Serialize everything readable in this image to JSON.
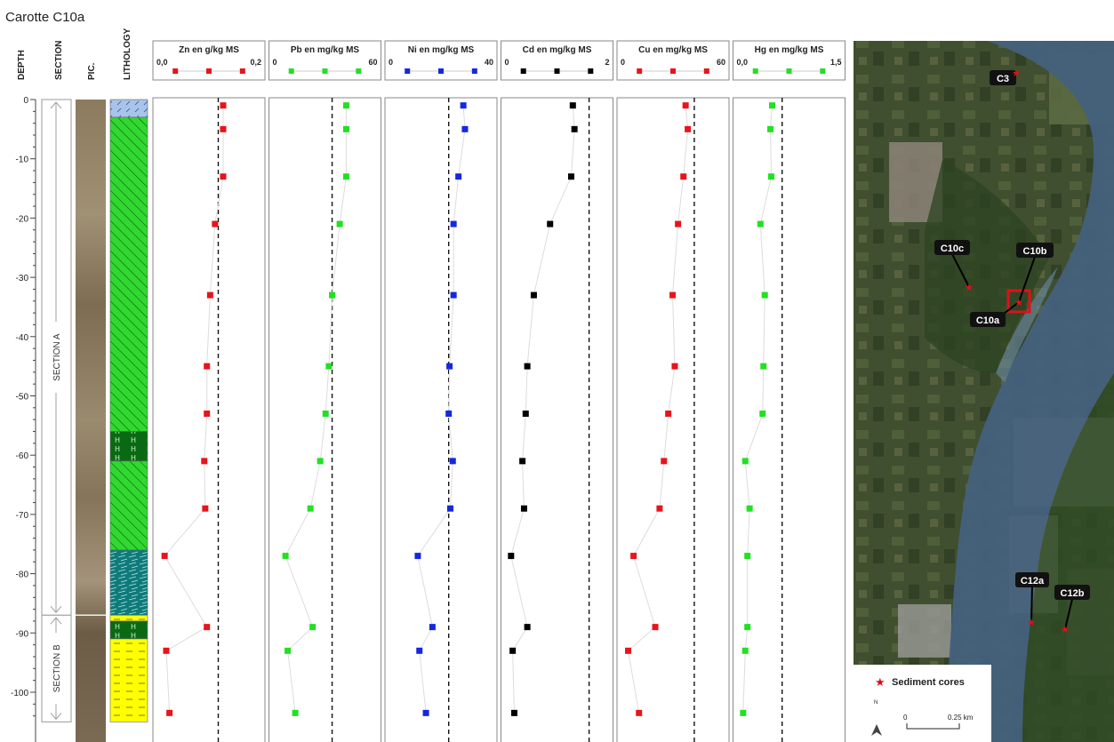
{
  "page": {
    "title": "Carotte C10a",
    "depth_label": "DEPTH",
    "section_label": "SECTION",
    "pic_label": "PIC.",
    "lithology_label": "LITHOLOGY"
  },
  "colors": {
    "zn": "#e8141c",
    "pb": "#22e022",
    "ni": "#1428e0",
    "cd": "#000000",
    "cu": "#e8141c",
    "hg": "#22e022",
    "lith_blue": "#a9c4ea",
    "lith_green": "#30d830",
    "lith_darkgreen": "#0a6a14",
    "lith_teal": "#0f7a7a",
    "lith_yellow": "#ffff00"
  },
  "sections": [
    {
      "label": "SECTION A",
      "top": 0,
      "bottom": -87
    },
    {
      "label": "SECTION B",
      "top": -87,
      "bottom": -105
    }
  ],
  "lithology": [
    {
      "top": 0,
      "bottom": -3,
      "type": "blue"
    },
    {
      "top": -3,
      "bottom": -56,
      "type": "green"
    },
    {
      "top": -56,
      "bottom": -61,
      "type": "darkgreen"
    },
    {
      "top": -61,
      "bottom": -76,
      "type": "green"
    },
    {
      "top": -76,
      "bottom": -87,
      "type": "teal"
    },
    {
      "top": -87,
      "bottom": -88,
      "type": "yellow"
    },
    {
      "top": -88,
      "bottom": -91,
      "type": "darkgreen"
    },
    {
      "top": -91,
      "bottom": -105,
      "type": "yellow"
    }
  ],
  "map": {
    "legend_label": "Sediment cores",
    "scale_label_left": "0",
    "scale_label_right": "0.25 km",
    "north_label": "N",
    "labels": [
      {
        "text": "C3"
      },
      {
        "text": "C10c"
      },
      {
        "text": "C10b"
      },
      {
        "text": "C10a"
      },
      {
        "text": "C12a"
      },
      {
        "text": "C12b"
      }
    ]
  },
  "chart_data": {
    "type": "scatter",
    "ylim": [
      0,
      -105
    ],
    "yticks": [
      0,
      -10,
      -20,
      -30,
      -40,
      -50,
      -60,
      -70,
      -80,
      -90,
      -100
    ],
    "depths": [
      -1,
      -5,
      -13,
      -21,
      -33,
      -45,
      -53,
      -61,
      -69,
      -77,
      -89,
      -93,
      -103.5
    ],
    "panels": [
      {
        "key": "zn",
        "label": "Zn en g/kg MS",
        "min_label": "0,0",
        "max_label": "0,2",
        "xlim": [
          0,
          0.2
        ],
        "threshold": 0.19,
        "values": [
          0.205,
          0.205,
          0.205,
          0.18,
          0.165,
          0.155,
          0.155,
          0.147,
          0.15,
          0.025,
          0.155,
          0.03,
          0.04
        ]
      },
      {
        "key": "pb",
        "label": "Pb en mg/kg MS",
        "min_label": "0",
        "max_label": "60",
        "xlim": [
          0,
          60
        ],
        "threshold": 55,
        "values": [
          68,
          68,
          68,
          62,
          55,
          52,
          49,
          44,
          35,
          12,
          37,
          14,
          21
        ]
      },
      {
        "key": "ni",
        "label": "Ni en mg/kg MS",
        "min_label": "0",
        "max_label": "40",
        "xlim": [
          0,
          40
        ],
        "threshold": 37,
        "values": [
          46,
          47,
          43,
          40,
          40,
          37.5,
          37,
          39.5,
          38,
          18,
          27,
          19,
          23
        ]
      },
      {
        "key": "cd",
        "label": "Cd en mg/kg MS",
        "min_label": "0",
        "max_label": "2",
        "xlim": [
          0,
          2
        ],
        "threshold": 2.6,
        "values": [
          2.1,
          2.15,
          2.05,
          1.4,
          0.9,
          0.7,
          0.65,
          0.55,
          0.6,
          0.2,
          0.7,
          0.25,
          0.3
        ]
      },
      {
        "key": "cu",
        "label": "Cu en mg/kg MS",
        "min_label": "0",
        "max_label": "60",
        "xlim": [
          0,
          60
        ],
        "threshold": 68,
        "values": [
          60,
          62,
          58,
          53,
          48,
          50,
          44,
          40,
          36,
          12,
          32,
          7,
          17
        ]
      },
      {
        "key": "hg",
        "label": "Hg en mg/kg MS",
        "min_label": "0,0",
        "max_label": "1,5",
        "xlim": [
          0,
          1.5
        ],
        "threshold": 1.05,
        "values": [
          0.82,
          0.78,
          0.8,
          0.55,
          0.65,
          0.62,
          0.6,
          0.2,
          0.3,
          0.25,
          0.25,
          0.2,
          0.15
        ]
      }
    ]
  }
}
